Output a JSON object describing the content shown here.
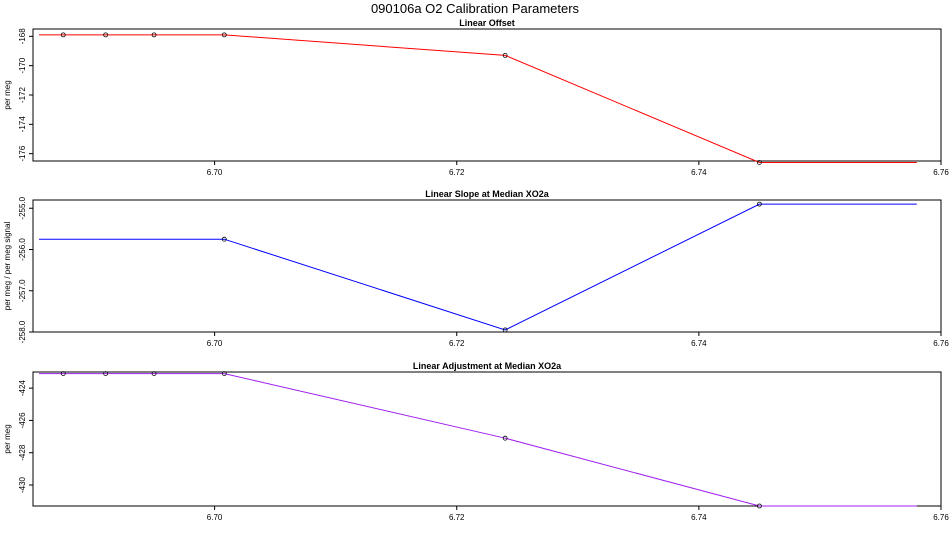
{
  "page": {
    "title": "090106a   O2 Calibration Parameters"
  },
  "chart_data": [
    {
      "type": "line",
      "title": "Linear Offset",
      "xlabel": "",
      "ylabel": "per meg",
      "xlim": [
        6.685,
        6.76
      ],
      "ylim": [
        -176.5,
        -167.5
      ],
      "x_ticks": [
        "6.70",
        "6.72",
        "6.74",
        "6.76"
      ],
      "y_ticks": [
        "-168",
        "-170",
        "-172",
        "-174",
        "-176"
      ],
      "x_tick_values": [
        6.7,
        6.72,
        6.74,
        6.76
      ],
      "y_tick_values": [
        -168,
        -170,
        -172,
        -174,
        -176
      ],
      "series": [
        {
          "color": "#ff0000",
          "x": [
            6.6855,
            6.6875,
            6.691,
            6.695,
            6.7008,
            6.724,
            6.745,
            6.758
          ],
          "y": [
            -167.9,
            -167.9,
            -167.9,
            -167.9,
            -167.9,
            -169.3,
            -176.6,
            -176.6
          ],
          "markers": [
            false,
            true,
            true,
            true,
            true,
            true,
            true,
            false
          ]
        }
      ],
      "grid": false
    },
    {
      "type": "line",
      "title": "Linear Slope at Median XO2a",
      "xlabel": "",
      "ylabel": "per meg / per meg signal",
      "xlim": [
        6.685,
        6.76
      ],
      "ylim": [
        -258.0,
        -254.8
      ],
      "x_ticks": [
        "6.70",
        "6.72",
        "6.74",
        "6.76"
      ],
      "y_ticks": [
        "-255.0",
        "-256.0",
        "-257.0",
        "-258.0"
      ],
      "x_tick_values": [
        6.7,
        6.72,
        6.74,
        6.76
      ],
      "y_tick_values": [
        -255.0,
        -256.0,
        -257.0,
        -258.0
      ],
      "series": [
        {
          "color": "#0000ff",
          "x": [
            6.6855,
            6.7008,
            6.724,
            6.745,
            6.758
          ],
          "y": [
            -255.75,
            -255.75,
            -257.95,
            -254.9,
            -254.9
          ],
          "markers": [
            false,
            true,
            true,
            true,
            false
          ]
        }
      ],
      "grid": false
    },
    {
      "type": "line",
      "title": "Linear Adjustment at Median XO2a",
      "xlabel": "",
      "ylabel": "per meg",
      "xlim": [
        6.685,
        6.76
      ],
      "ylim": [
        -431.3,
        -423.0
      ],
      "x_ticks": [
        "6.70",
        "6.72",
        "6.74",
        "6.76"
      ],
      "y_ticks": [
        "-424",
        "-426",
        "-428",
        "-430"
      ],
      "x_tick_values": [
        6.7,
        6.72,
        6.74,
        6.76
      ],
      "y_tick_values": [
        -424,
        -426,
        -428,
        -430
      ],
      "series": [
        {
          "color": "#a020f0",
          "x": [
            6.6855,
            6.6875,
            6.691,
            6.695,
            6.7008,
            6.724,
            6.745,
            6.758
          ],
          "y": [
            -423.1,
            -423.1,
            -423.1,
            -423.1,
            -423.1,
            -427.1,
            -431.3,
            -431.3
          ],
          "markers": [
            false,
            true,
            true,
            true,
            true,
            true,
            true,
            false
          ]
        }
      ],
      "grid": false
    }
  ]
}
